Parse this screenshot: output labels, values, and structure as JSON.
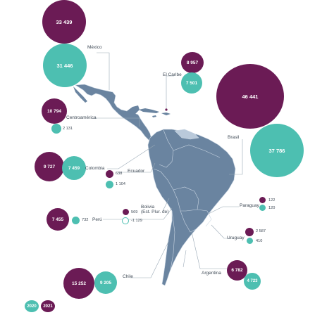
{
  "colors": {
    "y2021": "#6b1b55",
    "y2020": "#4dbfb1",
    "land": "#6a84a0",
    "border": "#c9d5e2",
    "guyanas": "#b9c9da",
    "leader": "#9aa9b6"
  },
  "legend": {
    "y2020": "2020",
    "y2021": "2021"
  },
  "regions": {
    "mexico": {
      "name": "México",
      "v2021": "33 439",
      "v2020": "31 446"
    },
    "caribe": {
      "name": "El Caribe",
      "v2021": "8 957",
      "v2020": "7 501"
    },
    "centroamerica": {
      "name": "Centroamérica",
      "v2021": "10 794",
      "v2020": "2 131"
    },
    "brasil": {
      "name": "Brasil",
      "v2021": "46 441",
      "v2020": "37 786"
    },
    "colombia": {
      "name": "Colombia",
      "v2021": "9 727",
      "v2020": "7 459"
    },
    "ecuador": {
      "name": "Ecuador",
      "v2021": "638",
      "v2020": "1 104"
    },
    "bolivia": {
      "name_line1": "Bolivia",
      "name_line2": "(Est. Plur. de)",
      "v2021": "569",
      "v2020": "-1 129"
    },
    "peru": {
      "name": "Perú",
      "v2021": "7 455",
      "v2020": "732"
    },
    "paraguay": {
      "name": "Paraguay",
      "v2021": "122",
      "v2020": "120"
    },
    "uruguay": {
      "name": "Uruguay",
      "v2021": "2 587",
      "v2020": "410"
    },
    "argentina": {
      "name": "Argentina",
      "v2021": "6 782",
      "v2020": "4 723"
    },
    "chile": {
      "name": "Chile",
      "v2021": "15 252",
      "v2020": "9 205"
    }
  }
}
